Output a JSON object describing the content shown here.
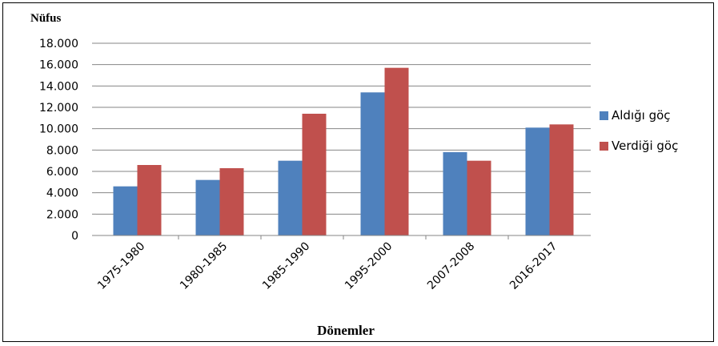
{
  "chart_data": {
    "type": "bar",
    "ylabel": "Nüfus",
    "xlabel": "Dönemler",
    "categories": [
      "1975-1980",
      "1980-1985",
      "1985-1990",
      "1995-2000",
      "2007-2008",
      "2016-2017"
    ],
    "series": [
      {
        "name": "Aldığı göç",
        "color": "#4f81bd",
        "values": [
          4600,
          5200,
          7000,
          13400,
          7800,
          10100
        ]
      },
      {
        "name": "Verdiği göç",
        "color": "#c0504d",
        "values": [
          6600,
          6300,
          11400,
          15700,
          7000,
          10400
        ]
      }
    ],
    "ylim": [
      0,
      18000
    ],
    "yticks": [
      "0",
      "2.000",
      "4.000",
      "6.000",
      "8.000",
      "10.000",
      "12.000",
      "14.000",
      "16.000",
      "18.000"
    ],
    "grid": true,
    "legend_position": "right"
  }
}
